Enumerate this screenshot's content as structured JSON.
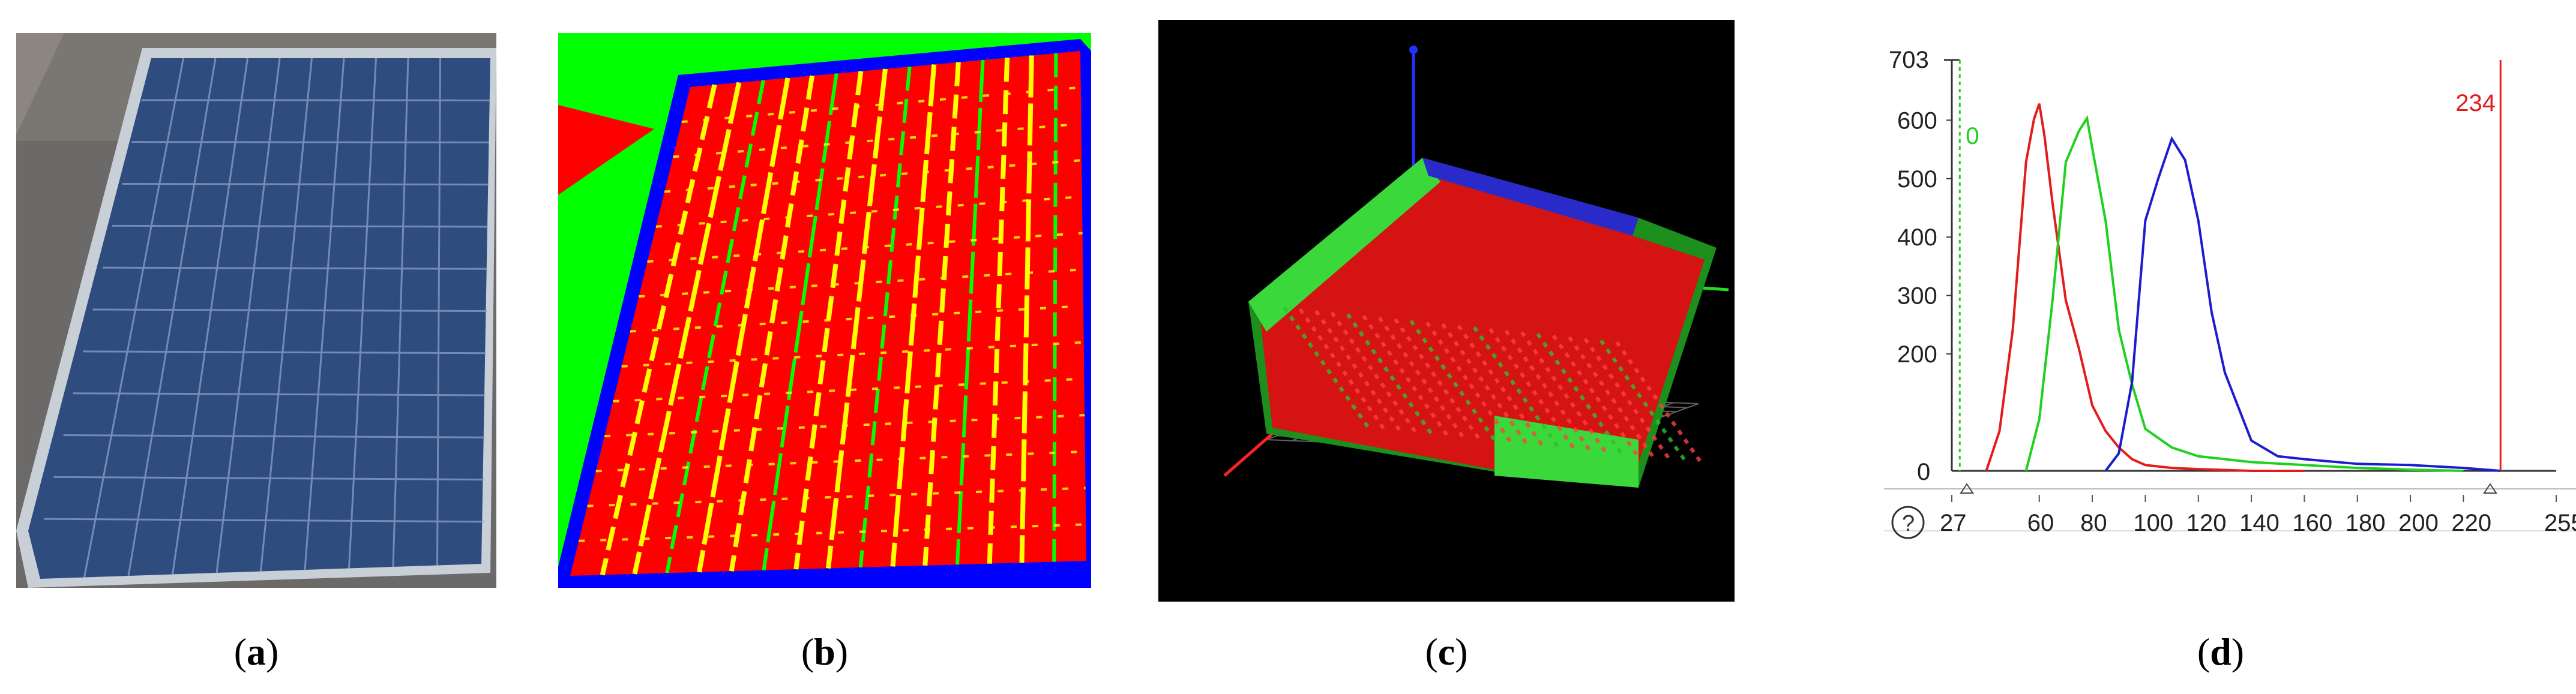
{
  "captions": {
    "a": {
      "open": "(",
      "letter": "a",
      "close": ")"
    },
    "b": {
      "open": "(",
      "letter": "b",
      "close": ")"
    },
    "c": {
      "open": "(",
      "letter": "c",
      "close": ")"
    },
    "d": {
      "open": "(",
      "letter": "d",
      "close": ")"
    }
  },
  "colors": {
    "panel_blue": "#2f4c7e",
    "frame": "#c9cfd6",
    "seg_red": "#ff0000",
    "seg_yellow": "#ffff00",
    "seg_green": "#00ff00",
    "seg_blue": "#0000ff",
    "hist_red": "#e31b1b",
    "hist_green": "#1fd11f",
    "hist_blue": "#1c1ccf"
  },
  "histogram": {
    "y_top_label": "703",
    "y_ticks": [
      "600",
      "500",
      "400",
      "300",
      "200"
    ],
    "y_zero": "0",
    "x_ticks": [
      "27",
      "60",
      "80",
      "100",
      "120",
      "140",
      "160",
      "180",
      "200",
      "220",
      "255"
    ],
    "left_marker": "0",
    "right_marker": "234",
    "help_icon": "?"
  },
  "chart_data": {
    "type": "line",
    "title": "",
    "xlabel": "",
    "ylabel": "",
    "xlim": [
      27,
      255
    ],
    "ylim": [
      0,
      703
    ],
    "markers": {
      "left": 0,
      "right": 234
    },
    "series": [
      {
        "color": "#e31b1b",
        "x": [
          40,
          45,
          50,
          55,
          58,
          60,
          62,
          65,
          70,
          75,
          80,
          85,
          90,
          95,
          100,
          110,
          120,
          140,
          160
        ],
        "y": [
          0,
          60,
          250,
          520,
          610,
          620,
          580,
          450,
          300,
          200,
          120,
          60,
          40,
          20,
          10,
          5,
          3,
          0,
          0
        ]
      },
      {
        "color": "#1fd11f",
        "x": [
          55,
          60,
          65,
          70,
          75,
          78,
          80,
          85,
          90,
          95,
          100,
          110,
          120,
          140,
          160,
          180,
          200,
          220
        ],
        "y": [
          0,
          80,
          300,
          520,
          590,
          595,
          560,
          420,
          250,
          140,
          80,
          40,
          25,
          15,
          10,
          5,
          2,
          0
        ]
      },
      {
        "color": "#1c1ccf",
        "x": [
          85,
          90,
          95,
          100,
          105,
          110,
          115,
          120,
          125,
          130,
          140,
          150,
          160,
          180,
          200,
          220,
          234
        ],
        "y": [
          0,
          30,
          160,
          420,
          510,
          560,
          540,
          420,
          280,
          160,
          60,
          25,
          20,
          12,
          10,
          5,
          0
        ]
      }
    ]
  }
}
